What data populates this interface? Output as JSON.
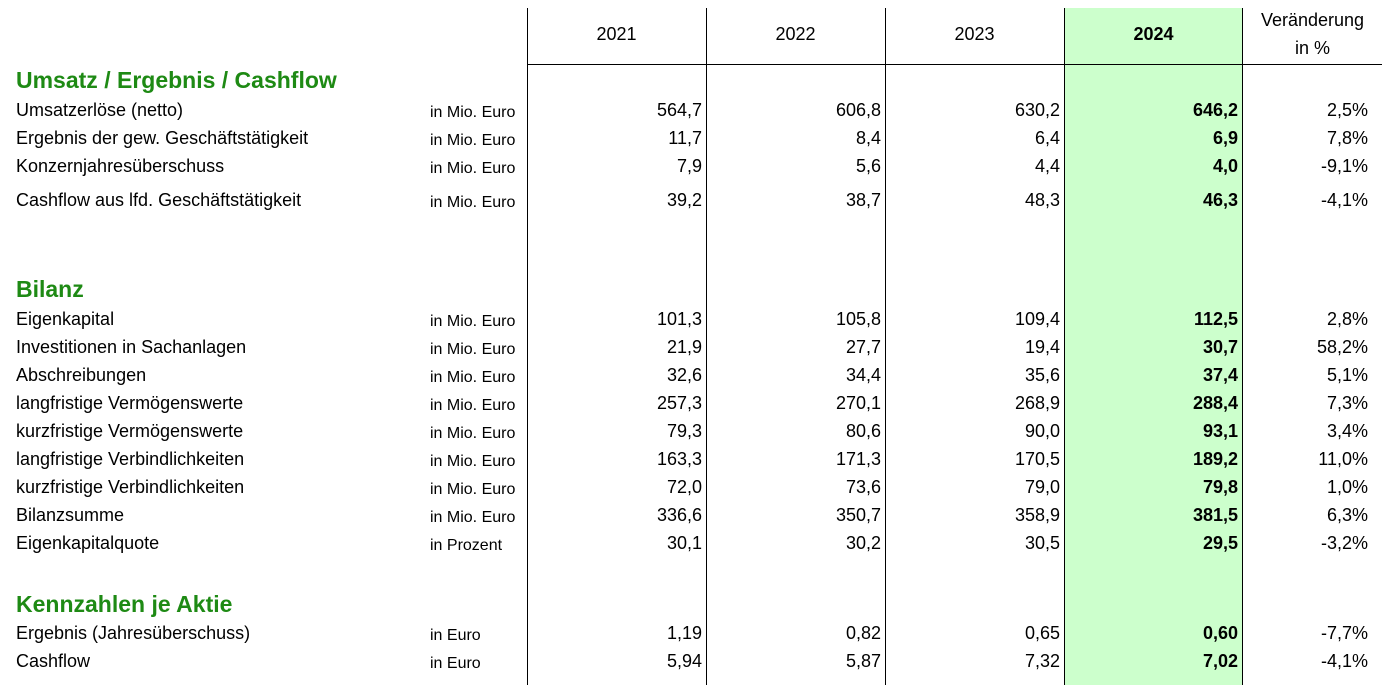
{
  "header": {
    "columns": [
      "2021",
      "2022",
      "2023",
      "2024"
    ],
    "change": [
      "Veränderung",
      "in %"
    ]
  },
  "sections": [
    {
      "title": "Umsatz / Ergebnis / Cashflow",
      "rows": [
        {
          "label": "Umsatzerlöse (netto)",
          "unit": "in Mio. Euro",
          "values": [
            "564,7",
            "606,8",
            "630,2",
            "646,2"
          ],
          "change": "2,5%"
        },
        {
          "label": "Ergebnis der gew. Geschäftstätigkeit",
          "unit": "in Mio. Euro",
          "values": [
            "11,7",
            "8,4",
            "6,4",
            "6,9"
          ],
          "change": "7,8%"
        },
        {
          "label": "Konzernjahresüberschuss",
          "unit": "in Mio. Euro",
          "values": [
            "7,9",
            "5,6",
            "4,4",
            "4,0"
          ],
          "change": "-9,1%"
        },
        {
          "label": "Cashflow aus lfd. Geschäftstätigkeit",
          "unit": "in Mio. Euro",
          "values": [
            "39,2",
            "38,7",
            "48,3",
            "46,3"
          ],
          "change": "-4,1%"
        }
      ]
    },
    {
      "title": "Bilanz",
      "rows": [
        {
          "label": "Eigenkapital",
          "unit": "in Mio. Euro",
          "values": [
            "101,3",
            "105,8",
            "109,4",
            "112,5"
          ],
          "change": "2,8%"
        },
        {
          "label": "Investitionen in Sachanlagen",
          "unit": "in Mio. Euro",
          "values": [
            "21,9",
            "27,7",
            "19,4",
            "30,7"
          ],
          "change": "58,2%"
        },
        {
          "label": "Abschreibungen",
          "unit": "in Mio. Euro",
          "values": [
            "32,6",
            "34,4",
            "35,6",
            "37,4"
          ],
          "change": "5,1%"
        },
        {
          "label": "langfristige Vermögenswerte",
          "unit": "in Mio. Euro",
          "values": [
            "257,3",
            "270,1",
            "268,9",
            "288,4"
          ],
          "change": "7,3%"
        },
        {
          "label": "kurzfristige Vermögenswerte",
          "unit": "in Mio. Euro",
          "values": [
            "79,3",
            "80,6",
            "90,0",
            "93,1"
          ],
          "change": "3,4%"
        },
        {
          "label": "langfristige Verbindlichkeiten",
          "unit": "in Mio. Euro",
          "values": [
            "163,3",
            "171,3",
            "170,5",
            "189,2"
          ],
          "change": "11,0%"
        },
        {
          "label": "kurzfristige Verbindlichkeiten",
          "unit": "in Mio. Euro",
          "values": [
            "72,0",
            "73,6",
            "79,0",
            "79,8"
          ],
          "change": "1,0%"
        },
        {
          "label": "Bilanzsumme",
          "unit": "in Mio. Euro",
          "values": [
            "336,6",
            "350,7",
            "358,9",
            "381,5"
          ],
          "change": "6,3%"
        },
        {
          "label": "Eigenkapitalquote",
          "unit": "in Prozent",
          "values": [
            "30,1",
            "30,2",
            "30,5",
            "29,5"
          ],
          "change": "-3,2%"
        }
      ]
    },
    {
      "title": "Kennzahlen je Aktie",
      "rows": [
        {
          "label": "Ergebnis (Jahresüberschuss)",
          "unit": "in Euro",
          "values": [
            "1,19",
            "0,82",
            "0,65",
            "0,60"
          ],
          "change": "-7,7%"
        },
        {
          "label": "Cashflow",
          "unit": "in Euro",
          "values": [
            "5,94",
            "5,87",
            "7,32",
            "7,02"
          ],
          "change": "-4,1%"
        }
      ]
    }
  ]
}
